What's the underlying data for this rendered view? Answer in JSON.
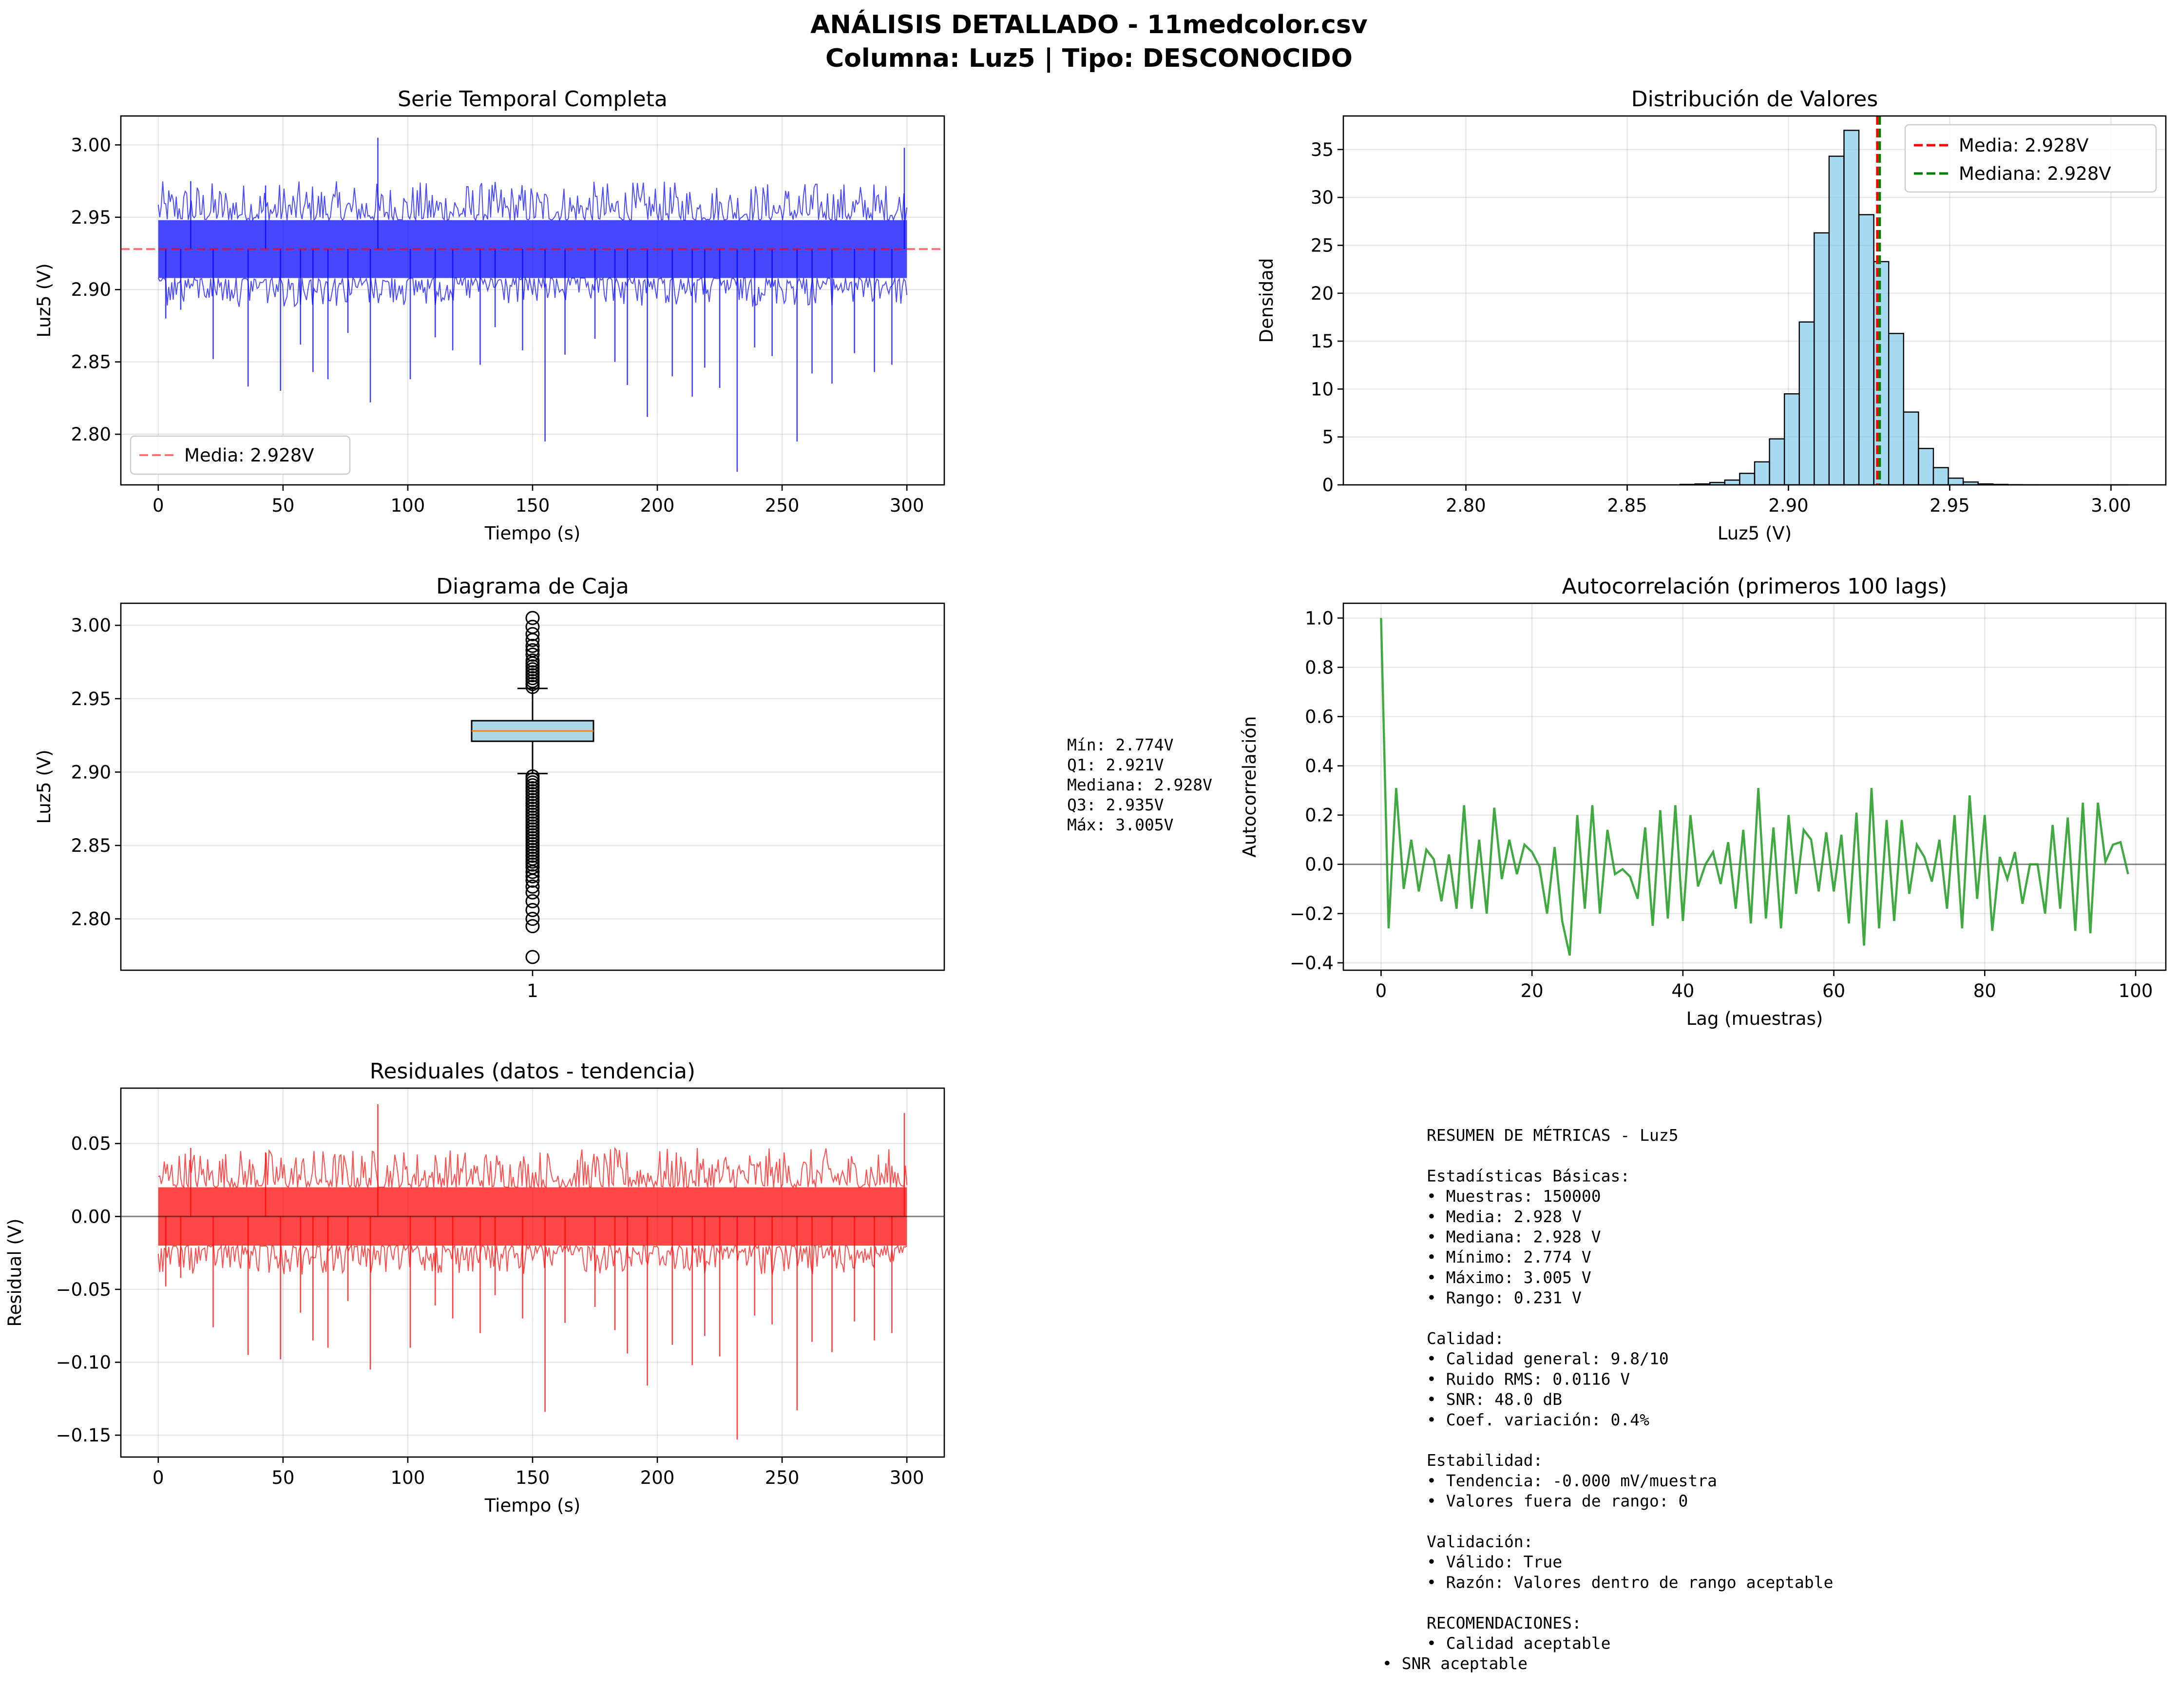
{
  "figure": {
    "title_line1": "ANÁLISIS DETALLADO - 11medcolor.csv",
    "title_line2": "Columna: Luz5 | Tipo: DESCONOCIDO"
  },
  "colors": {
    "series_blue": "#0000ff",
    "mean_red": "#ff0000",
    "median_green": "#008000",
    "hist_fill": "#87ceeb",
    "acf_green": "#2ca02c",
    "residual_red": "#ff0000",
    "box_fill": "#add8e6",
    "box_median": "#ff7f0e"
  },
  "box_stats_text": [
    "Mín: 2.774V",
    "Q1: 2.921V",
    "Mediana: 2.928V",
    "Q3: 2.935V",
    "Máx: 3.005V"
  ],
  "summary_text": [
    "RESUMEN DE MÉTRICAS - Luz5",
    "",
    "Estadísticas Básicas:",
    "• Muestras: 150000",
    "• Media: 2.928 V",
    "• Mediana: 2.928 V",
    "• Mínimo: 2.774 V",
    "• Máximo: 3.005 V",
    "• Rango: 0.231 V",
    "",
    "Calidad:",
    "• Calidad general: 9.8/10",
    "• Ruido RMS: 0.0116 V",
    "• SNR: 48.0 dB",
    "• Coef. variación: 0.4%",
    "",
    "Estabilidad:",
    "• Tendencia: -0.000 mV/muestra",
    "• Valores fuera de rango: 0",
    "",
    "Validación:",
    "• Válido: True",
    "• Razón: Valores dentro de rango aceptable",
    "",
    "RECOMENDACIONES:",
    "• Calidad aceptable"
  ],
  "summary_last_line": "• SNR aceptable",
  "chart_data": [
    {
      "id": "timeseries",
      "type": "line",
      "title": "Serie Temporal Completa",
      "xlabel": "Tiempo (s)",
      "ylabel": "Luz5 (V)",
      "xlim": [
        -15,
        315
      ],
      "ylim": [
        2.765,
        3.02
      ],
      "xticks": [
        0,
        50,
        100,
        150,
        200,
        250,
        300
      ],
      "yticks": [
        2.8,
        2.85,
        2.9,
        2.95,
        3.0
      ],
      "ytick_labels": [
        "2.80",
        "2.85",
        "2.90",
        "2.95",
        "3.00"
      ],
      "band": {
        "low": 2.908,
        "high": 2.948
      },
      "band_edges": {
        "low_min": 2.888,
        "high_max": 2.975
      },
      "mean": 2.928,
      "spikes": [
        {
          "x": 3,
          "y": 2.88
        },
        {
          "x": 9,
          "y": 2.886
        },
        {
          "x": 13,
          "y": 2.975
        },
        {
          "x": 22,
          "y": 2.852
        },
        {
          "x": 36,
          "y": 2.833
        },
        {
          "x": 43,
          "y": 2.972
        },
        {
          "x": 49,
          "y": 2.83
        },
        {
          "x": 57,
          "y": 2.862
        },
        {
          "x": 62,
          "y": 2.843
        },
        {
          "x": 68,
          "y": 2.838
        },
        {
          "x": 76,
          "y": 2.87
        },
        {
          "x": 85,
          "y": 2.822
        },
        {
          "x": 88,
          "y": 3.005
        },
        {
          "x": 101,
          "y": 2.838
        },
        {
          "x": 111,
          "y": 2.867
        },
        {
          "x": 118,
          "y": 2.858
        },
        {
          "x": 129,
          "y": 2.848
        },
        {
          "x": 135,
          "y": 2.874
        },
        {
          "x": 146,
          "y": 2.858
        },
        {
          "x": 155,
          "y": 2.795
        },
        {
          "x": 163,
          "y": 2.855
        },
        {
          "x": 175,
          "y": 2.866
        },
        {
          "x": 183,
          "y": 2.85
        },
        {
          "x": 188,
          "y": 2.834
        },
        {
          "x": 196,
          "y": 2.812
        },
        {
          "x": 206,
          "y": 2.84
        },
        {
          "x": 214,
          "y": 2.826
        },
        {
          "x": 219,
          "y": 2.846
        },
        {
          "x": 225,
          "y": 2.832
        },
        {
          "x": 232,
          "y": 2.774
        },
        {
          "x": 239,
          "y": 2.86
        },
        {
          "x": 246,
          "y": 2.854
        },
        {
          "x": 256,
          "y": 2.795
        },
        {
          "x": 262,
          "y": 2.842
        },
        {
          "x": 270,
          "y": 2.835
        },
        {
          "x": 279,
          "y": 2.856
        },
        {
          "x": 287,
          "y": 2.843
        },
        {
          "x": 294,
          "y": 2.848
        },
        {
          "x": 299,
          "y": 2.998
        }
      ],
      "legend": [
        {
          "name": "Media: 2.928V",
          "style": "dashed",
          "color": "#ff0000"
        }
      ],
      "legend_loc": "lower-left"
    },
    {
      "id": "histogram",
      "type": "bar",
      "title": "Distribución de Valores",
      "xlabel": "Luz5 (V)",
      "ylabel": "Densidad",
      "xlim": [
        2.762,
        3.017
      ],
      "ylim": [
        0,
        38.5
      ],
      "xticks": [
        2.8,
        2.85,
        2.9,
        2.95,
        3.0
      ],
      "xtick_labels": [
        "2.80",
        "2.85",
        "2.90",
        "2.95",
        "3.00"
      ],
      "yticks": [
        0,
        5,
        10,
        15,
        20,
        25,
        30,
        35
      ],
      "bins": {
        "start": 2.774,
        "width": 0.00462
      },
      "values": [
        0,
        0,
        0,
        0,
        0,
        0,
        0,
        0,
        0,
        0,
        0,
        0,
        0,
        0,
        0,
        0,
        0,
        0,
        0,
        0,
        0.05,
        0.1,
        0.25,
        0.5,
        1.2,
        2.4,
        4.8,
        9.5,
        17.0,
        26.3,
        34.3,
        37.0,
        28.2,
        23.3,
        15.8,
        7.6,
        3.8,
        1.8,
        0.7,
        0.3,
        0.1,
        0.05,
        0.02,
        0.01,
        0.005,
        0.005,
        0.002,
        0.002,
        0.001,
        0.001
      ],
      "mean": 2.928,
      "median": 2.928,
      "legend": [
        {
          "name": "Media: 2.928V",
          "style": "dashed",
          "color": "#ff0000"
        },
        {
          "name": "Mediana: 2.928V",
          "style": "dashed",
          "color": "#008000"
        }
      ],
      "legend_loc": "upper-right"
    },
    {
      "id": "boxplot",
      "type": "box",
      "title": "Diagrama de Caja",
      "ylabel": "Luz5 (V)",
      "xticks": [
        1
      ],
      "ylim": [
        2.765,
        3.015
      ],
      "yticks": [
        2.8,
        2.85,
        2.9,
        2.95,
        3.0
      ],
      "ytick_labels": [
        "2.80",
        "2.85",
        "2.90",
        "2.95",
        "3.00"
      ],
      "q1": 2.921,
      "median": 2.928,
      "q3": 2.935,
      "whisker_low": 2.899,
      "whisker_high": 2.957,
      "fliers_high": [
        2.958,
        2.96,
        2.962,
        2.964,
        2.966,
        2.968,
        2.97,
        2.972,
        2.974,
        2.976,
        2.98,
        2.983,
        2.986,
        2.99,
        2.994,
        2.999,
        3.005
      ],
      "fliers_low": [
        2.897,
        2.895,
        2.893,
        2.891,
        2.889,
        2.887,
        2.885,
        2.883,
        2.881,
        2.879,
        2.877,
        2.875,
        2.873,
        2.871,
        2.869,
        2.867,
        2.865,
        2.863,
        2.861,
        2.859,
        2.857,
        2.855,
        2.853,
        2.851,
        2.849,
        2.847,
        2.845,
        2.843,
        2.841,
        2.839,
        2.837,
        2.835,
        2.832,
        2.829,
        2.826,
        2.822,
        2.818,
        2.812,
        2.806,
        2.8,
        2.795,
        2.774
      ]
    },
    {
      "id": "acf",
      "type": "line",
      "title": "Autocorrelación (primeros 100 lags)",
      "xlabel": "Lag (muestras)",
      "ylabel": "Autocorrelación",
      "xlim": [
        -5,
        104
      ],
      "ylim": [
        -0.43,
        1.06
      ],
      "xticks": [
        0,
        20,
        40,
        60,
        80,
        100
      ],
      "yticks": [
        -0.4,
        -0.2,
        0.0,
        0.2,
        0.4,
        0.6,
        0.8,
        1.0
      ],
      "ytick_labels": [
        "−0.4",
        "−0.2",
        "0.0",
        "0.2",
        "0.4",
        "0.6",
        "0.8",
        "1.0"
      ],
      "values": [
        1.0,
        -0.26,
        0.31,
        -0.1,
        0.1,
        -0.11,
        0.06,
        0.02,
        -0.15,
        0.04,
        -0.18,
        0.24,
        -0.18,
        0.1,
        -0.2,
        0.23,
        -0.06,
        0.1,
        -0.04,
        0.08,
        0.05,
        -0.01,
        -0.2,
        0.07,
        -0.23,
        -0.37,
        0.2,
        -0.18,
        0.24,
        -0.2,
        0.14,
        -0.04,
        -0.02,
        -0.05,
        -0.14,
        0.15,
        -0.25,
        0.22,
        -0.22,
        0.24,
        -0.23,
        0.2,
        -0.09,
        0.0,
        0.05,
        -0.08,
        0.09,
        -0.18,
        0.14,
        -0.24,
        0.31,
        -0.22,
        0.15,
        -0.26,
        0.2,
        -0.12,
        0.14,
        0.1,
        -0.11,
        0.13,
        -0.11,
        0.12,
        -0.24,
        0.21,
        -0.33,
        0.31,
        -0.26,
        0.18,
        -0.23,
        0.18,
        -0.12,
        0.08,
        0.03,
        -0.07,
        0.1,
        -0.18,
        0.2,
        -0.26,
        0.28,
        -0.14,
        0.2,
        -0.27,
        0.03,
        -0.06,
        0.05,
        -0.16,
        0.0,
        0.0,
        -0.2,
        0.16,
        -0.18,
        0.19,
        -0.27,
        0.25,
        -0.28,
        0.25,
        0.01,
        0.08,
        0.09,
        -0.04
      ],
      "zero_line": 0
    },
    {
      "id": "residuals",
      "type": "line",
      "title": "Residuales (datos - tendencia)",
      "xlabel": "Tiempo (s)",
      "ylabel": "Residual (V)",
      "xlim": [
        -15,
        315
      ],
      "ylim": [
        -0.165,
        0.088
      ],
      "xticks": [
        0,
        50,
        100,
        150,
        200,
        250,
        300
      ],
      "yticks": [
        -0.15,
        -0.1,
        -0.05,
        0.0,
        0.05
      ],
      "ytick_labels": [
        "−0.15",
        "−0.10",
        "−0.05",
        "0.00",
        "0.05"
      ],
      "band": {
        "low": -0.02,
        "high": 0.02
      },
      "band_edges": {
        "low_min": -0.04,
        "high_max": 0.047
      },
      "spikes": [
        {
          "x": 3,
          "y": -0.048
        },
        {
          "x": 9,
          "y": -0.042
        },
        {
          "x": 13,
          "y": 0.047
        },
        {
          "x": 22,
          "y": -0.076
        },
        {
          "x": 36,
          "y": -0.095
        },
        {
          "x": 43,
          "y": 0.044
        },
        {
          "x": 49,
          "y": -0.098
        },
        {
          "x": 57,
          "y": -0.066
        },
        {
          "x": 62,
          "y": -0.085
        },
        {
          "x": 68,
          "y": -0.09
        },
        {
          "x": 76,
          "y": -0.058
        },
        {
          "x": 85,
          "y": -0.105
        },
        {
          "x": 88,
          "y": 0.077
        },
        {
          "x": 101,
          "y": -0.09
        },
        {
          "x": 111,
          "y": -0.061
        },
        {
          "x": 118,
          "y": -0.07
        },
        {
          "x": 129,
          "y": -0.08
        },
        {
          "x": 135,
          "y": -0.054
        },
        {
          "x": 146,
          "y": -0.07
        },
        {
          "x": 155,
          "y": -0.134
        },
        {
          "x": 163,
          "y": -0.073
        },
        {
          "x": 175,
          "y": -0.062
        },
        {
          "x": 183,
          "y": -0.078
        },
        {
          "x": 188,
          "y": -0.094
        },
        {
          "x": 196,
          "y": -0.116
        },
        {
          "x": 206,
          "y": -0.088
        },
        {
          "x": 214,
          "y": -0.102
        },
        {
          "x": 219,
          "y": -0.082
        },
        {
          "x": 225,
          "y": -0.096
        },
        {
          "x": 232,
          "y": -0.153
        },
        {
          "x": 239,
          "y": -0.068
        },
        {
          "x": 246,
          "y": -0.074
        },
        {
          "x": 256,
          "y": -0.133
        },
        {
          "x": 262,
          "y": -0.086
        },
        {
          "x": 270,
          "y": -0.093
        },
        {
          "x": 279,
          "y": -0.072
        },
        {
          "x": 287,
          "y": -0.085
        },
        {
          "x": 294,
          "y": -0.08
        },
        {
          "x": 299,
          "y": 0.071
        }
      ],
      "zero_line": 0
    }
  ]
}
